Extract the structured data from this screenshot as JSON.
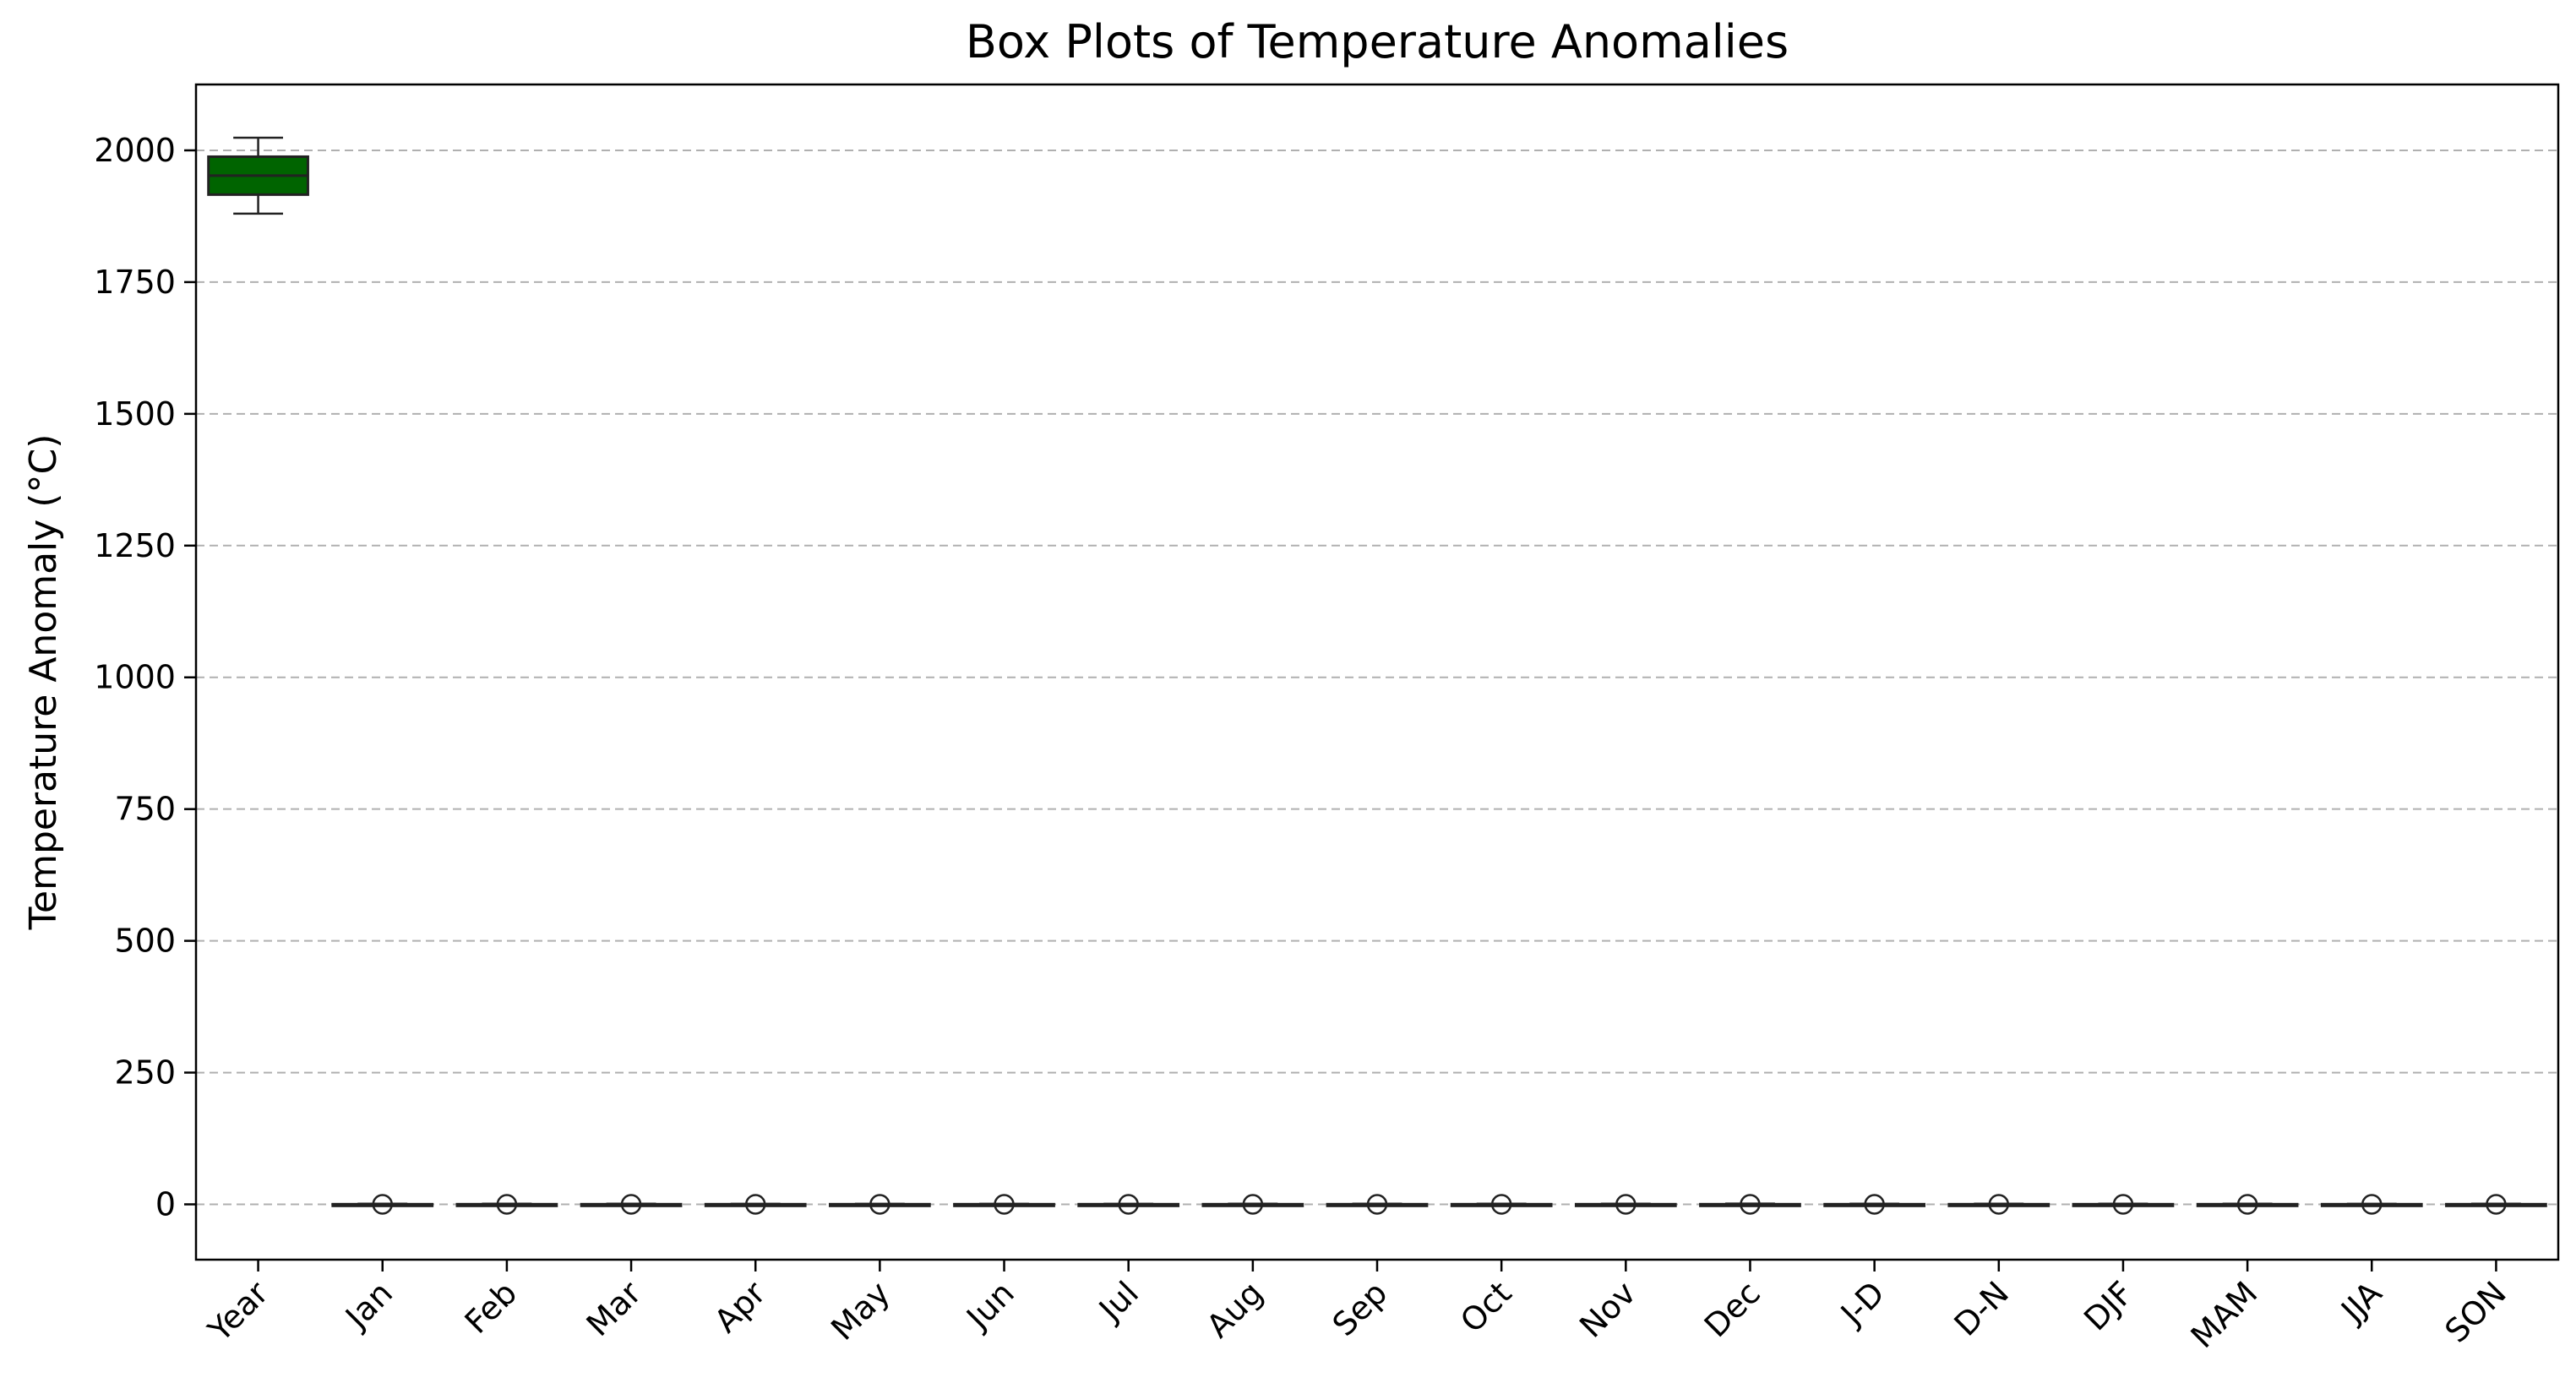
{
  "chart_data": {
    "type": "box",
    "title": "Box Plots of Temperature Anomalies",
    "xlabel": "",
    "ylabel": "Temperature Anomaly (°C)",
    "ylim": [
      -105,
      2125
    ],
    "yticks": [
      0,
      250,
      500,
      750,
      1000,
      1250,
      1500,
      1750,
      2000
    ],
    "grid": {
      "y": true,
      "x": false,
      "style": "dashed"
    },
    "colors": {
      "box_fill": "#006400",
      "grid": "#b0b0b0",
      "axis": "#000000"
    },
    "categories": [
      "Year",
      "Jan",
      "Feb",
      "Mar",
      "Apr",
      "May",
      "Jun",
      "Jul",
      "Aug",
      "Sep",
      "Oct",
      "Nov",
      "Dec",
      "J-D",
      "D-N",
      "DJF",
      "MAM",
      "JJA",
      "SON"
    ],
    "boxes": [
      {
        "category": "Year",
        "whislo": 1880,
        "q1": 1916,
        "med": 1952,
        "q3": 1988,
        "whishi": 2024,
        "fliers": []
      },
      {
        "category": "Jan",
        "whislo": -0.8,
        "q1": -0.2,
        "med": 0.0,
        "q3": 0.3,
        "whishi": 1.2,
        "fliers": [
          0
        ]
      },
      {
        "category": "Feb",
        "whislo": -0.8,
        "q1": -0.2,
        "med": 0.0,
        "q3": 0.3,
        "whishi": 1.3,
        "fliers": [
          0
        ]
      },
      {
        "category": "Mar",
        "whislo": -0.8,
        "q1": -0.2,
        "med": 0.0,
        "q3": 0.3,
        "whishi": 1.3,
        "fliers": [
          0
        ]
      },
      {
        "category": "Apr",
        "whislo": -0.7,
        "q1": -0.2,
        "med": 0.0,
        "q3": 0.3,
        "whishi": 1.1,
        "fliers": [
          0
        ]
      },
      {
        "category": "May",
        "whislo": -0.7,
        "q1": -0.2,
        "med": 0.0,
        "q3": 0.3,
        "whishi": 1.0,
        "fliers": [
          0
        ]
      },
      {
        "category": "Jun",
        "whislo": -0.6,
        "q1": -0.2,
        "med": 0.0,
        "q3": 0.3,
        "whishi": 1.0,
        "fliers": [
          0
        ]
      },
      {
        "category": "Jul",
        "whislo": -0.6,
        "q1": -0.2,
        "med": 0.0,
        "q3": 0.3,
        "whishi": 1.1,
        "fliers": [
          0
        ]
      },
      {
        "category": "Aug",
        "whislo": -0.6,
        "q1": -0.2,
        "med": 0.0,
        "q3": 0.3,
        "whishi": 1.2,
        "fliers": [
          0
        ]
      },
      {
        "category": "Sep",
        "whislo": -0.6,
        "q1": -0.2,
        "med": 0.0,
        "q3": 0.3,
        "whishi": 1.2,
        "fliers": [
          0
        ]
      },
      {
        "category": "Oct",
        "whislo": -0.6,
        "q1": -0.2,
        "med": 0.0,
        "q3": 0.3,
        "whishi": 1.3,
        "fliers": [
          0
        ]
      },
      {
        "category": "Nov",
        "whislo": -0.7,
        "q1": -0.2,
        "med": 0.0,
        "q3": 0.3,
        "whishi": 1.3,
        "fliers": [
          0
        ]
      },
      {
        "category": "Dec",
        "whislo": -0.8,
        "q1": -0.2,
        "med": 0.0,
        "q3": 0.3,
        "whishi": 1.4,
        "fliers": [
          0
        ]
      },
      {
        "category": "J-D",
        "whislo": -0.5,
        "q1": -0.2,
        "med": 0.0,
        "q3": 0.3,
        "whishi": 1.2,
        "fliers": [
          0
        ]
      },
      {
        "category": "D-N",
        "whislo": -0.5,
        "q1": -0.2,
        "med": 0.0,
        "q3": 0.3,
        "whishi": 1.2,
        "fliers": [
          0
        ]
      },
      {
        "category": "DJF",
        "whislo": -0.7,
        "q1": -0.2,
        "med": 0.0,
        "q3": 0.3,
        "whishi": 1.3,
        "fliers": [
          0
        ]
      },
      {
        "category": "MAM",
        "whislo": -0.7,
        "q1": -0.2,
        "med": 0.0,
        "q3": 0.3,
        "whishi": 1.2,
        "fliers": [
          0
        ]
      },
      {
        "category": "JJA",
        "whislo": -0.5,
        "q1": -0.2,
        "med": 0.0,
        "q3": 0.3,
        "whishi": 1.1,
        "fliers": [
          0
        ]
      },
      {
        "category": "SON",
        "whislo": -0.6,
        "q1": -0.2,
        "med": 0.0,
        "q3": 0.3,
        "whishi": 1.2,
        "fliers": [
          0
        ]
      }
    ]
  }
}
